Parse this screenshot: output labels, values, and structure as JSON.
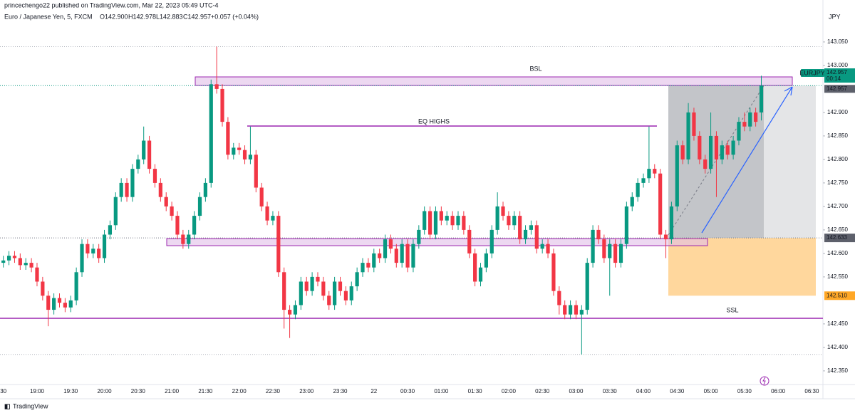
{
  "header": {
    "publisher": "princechengo22 published on TradingView.com, Mar 22, 2023 05:49 UTC-4",
    "symbol": "Euro / Japanese Yen, 5, FXCM",
    "open": "O142.900",
    "high": "H142.978",
    "low": "L142.883",
    "close": "C142.957",
    "change": "+0.057 (+0.04%)",
    "currency": "JPY"
  },
  "footer": {
    "brand": "TradingView"
  },
  "chart_data": {
    "type": "candlestick",
    "categories": [
      "30",
      null,
      null,
      null,
      null,
      null,
      "19:00",
      null,
      null,
      null,
      null,
      null,
      "19:30",
      null,
      null,
      null,
      null,
      null,
      "20:00",
      null,
      null,
      null,
      null,
      null,
      "20:30",
      null,
      null,
      null,
      null,
      null,
      "21:00",
      null,
      null,
      null,
      null,
      null,
      "21:30",
      null,
      null,
      null,
      null,
      null,
      "22:00",
      null,
      null,
      null,
      null,
      null,
      "22:30",
      null,
      null,
      null,
      null,
      null,
      "23:00",
      null,
      null,
      null,
      null,
      null,
      "23:30",
      null,
      null,
      null,
      null,
      null,
      "22",
      null,
      null,
      null,
      null,
      null,
      "00:30",
      null,
      null,
      null,
      null,
      null,
      "01:00",
      null,
      null,
      null,
      null,
      null,
      "01:30",
      null,
      null,
      null,
      null,
      null,
      "02:00",
      null,
      null,
      null,
      null,
      null,
      "02:30",
      null,
      null,
      null,
      null,
      null,
      "03:00",
      null,
      null,
      null,
      null,
      null,
      "03:30",
      null,
      null,
      null,
      null,
      null,
      "04:00",
      null,
      null,
      null,
      null,
      null,
      "04:30",
      null,
      null,
      null,
      null,
      null,
      "05:00",
      null,
      null,
      null,
      null,
      null,
      "05:30",
      null,
      null,
      null,
      null,
      null,
      "06:00",
      null,
      null,
      null,
      null,
      null,
      "06:30"
    ],
    "open": [
      142.58,
      142.585,
      142.595,
      142.59,
      142.575,
      142.58,
      142.57,
      142.54,
      142.51,
      142.48,
      142.505,
      142.495,
      142.485,
      142.5,
      142.56,
      142.62,
      142.6,
      142.61,
      142.59,
      142.64,
      142.66,
      142.72,
      142.75,
      142.72,
      142.78,
      142.8,
      142.84,
      142.78,
      142.75,
      142.72,
      142.7,
      142.68,
      142.64,
      142.62,
      142.64,
      142.68,
      142.72,
      142.75,
      142.96,
      142.95,
      142.88,
      142.81,
      142.825,
      142.82,
      142.8,
      142.81,
      142.74,
      142.7,
      142.67,
      142.68,
      142.56,
      142.48,
      142.47,
      142.49,
      142.54,
      142.52,
      142.55,
      142.54,
      142.51,
      142.49,
      142.54,
      142.52,
      142.5,
      142.53,
      142.56,
      142.58,
      142.57,
      142.6,
      142.59,
      142.63,
      142.61,
      142.58,
      142.62,
      142.57,
      142.62,
      142.65,
      142.69,
      142.64,
      142.69,
      142.67,
      142.68,
      142.66,
      142.68,
      142.65,
      142.6,
      142.54,
      142.57,
      142.6,
      142.65,
      142.7,
      142.68,
      142.66,
      142.68,
      142.63,
      142.65,
      142.66,
      142.61,
      142.62,
      142.6,
      142.52,
      142.49,
      142.47,
      142.49,
      142.47,
      142.48,
      142.58,
      142.65,
      142.63,
      142.59,
      142.62,
      142.58,
      142.62,
      142.7,
      142.72,
      142.75,
      142.76,
      142.78,
      142.77,
      142.64,
      142.63,
      142.7,
      142.83,
      142.8,
      142.9,
      142.85,
      142.8,
      142.78,
      142.85,
      142.8,
      142.83,
      142.81,
      142.84,
      142.88,
      142.87,
      142.9,
      142.9,
      null,
      null,
      null,
      null,
      null,
      null,
      null,
      null,
      null
    ],
    "high": [
      142.595,
      142.605,
      142.605,
      142.6,
      142.59,
      142.59,
      142.58,
      142.55,
      142.52,
      142.515,
      142.515,
      142.505,
      142.51,
      142.57,
      142.63,
      142.63,
      142.62,
      142.62,
      142.65,
      142.67,
      142.73,
      142.76,
      142.76,
      142.79,
      142.81,
      142.87,
      142.85,
      142.79,
      142.76,
      142.73,
      142.71,
      142.69,
      142.65,
      142.65,
      142.69,
      142.73,
      142.76,
      142.97,
      143.04,
      142.96,
      142.89,
      142.835,
      142.835,
      142.83,
      142.87,
      142.82,
      142.75,
      142.71,
      142.69,
      142.69,
      142.57,
      142.49,
      142.5,
      142.55,
      142.55,
      142.56,
      142.56,
      142.55,
      142.52,
      142.55,
      142.55,
      142.53,
      142.54,
      142.57,
      142.59,
      142.59,
      142.61,
      142.61,
      142.64,
      142.64,
      142.62,
      142.63,
      142.63,
      142.63,
      142.66,
      142.7,
      142.7,
      142.7,
      142.7,
      142.69,
      142.69,
      142.69,
      142.69,
      142.66,
      142.61,
      142.58,
      142.61,
      142.66,
      142.73,
      142.71,
      142.69,
      142.69,
      142.69,
      142.66,
      142.67,
      142.67,
      142.63,
      142.63,
      142.61,
      142.53,
      142.5,
      142.5,
      142.5,
      142.49,
      142.59,
      142.66,
      142.66,
      142.64,
      142.63,
      142.63,
      142.63,
      142.71,
      142.73,
      142.76,
      142.77,
      142.87,
      142.79,
      142.78,
      142.65,
      142.71,
      142.84,
      142.84,
      142.92,
      142.91,
      142.86,
      142.81,
      142.9,
      142.86,
      142.84,
      142.84,
      142.85,
      142.89,
      142.9,
      142.91,
      142.91,
      142.978,
      null,
      null,
      null,
      null,
      null,
      null,
      null,
      null,
      null
    ],
    "low": [
      142.57,
      142.575,
      142.58,
      142.565,
      142.565,
      142.56,
      142.53,
      142.5,
      142.445,
      142.47,
      142.485,
      142.475,
      142.475,
      142.49,
      142.55,
      142.59,
      142.59,
      142.58,
      142.58,
      142.63,
      142.65,
      142.71,
      142.71,
      142.71,
      142.77,
      142.79,
      142.77,
      142.74,
      142.71,
      142.69,
      142.67,
      142.63,
      142.61,
      142.61,
      142.63,
      142.67,
      142.71,
      142.74,
      142.94,
      142.87,
      142.8,
      142.8,
      142.81,
      142.79,
      142.79,
      142.73,
      142.69,
      142.66,
      142.66,
      142.55,
      142.44,
      142.42,
      142.46,
      142.48,
      142.51,
      142.51,
      142.53,
      142.5,
      142.48,
      142.48,
      142.51,
      142.49,
      142.49,
      142.52,
      142.55,
      142.56,
      142.56,
      142.58,
      142.58,
      142.6,
      142.57,
      142.57,
      142.56,
      142.56,
      142.61,
      142.64,
      142.63,
      142.63,
      142.66,
      142.66,
      142.65,
      142.65,
      142.64,
      142.59,
      142.53,
      142.53,
      142.56,
      142.59,
      142.64,
      142.67,
      142.65,
      142.65,
      142.62,
      142.62,
      142.64,
      142.6,
      142.6,
      142.59,
      142.51,
      142.47,
      142.46,
      142.46,
      142.46,
      142.385,
      142.47,
      142.57,
      142.62,
      142.58,
      142.51,
      142.57,
      142.57,
      142.61,
      142.69,
      142.71,
      142.74,
      142.75,
      142.76,
      142.63,
      142.59,
      142.62,
      142.69,
      142.79,
      142.79,
      142.84,
      142.79,
      142.77,
      142.77,
      142.72,
      142.79,
      142.8,
      142.8,
      142.83,
      142.86,
      142.86,
      142.87,
      142.883,
      null,
      null,
      null,
      null,
      null,
      null,
      null,
      null,
      null
    ],
    "close": [
      142.585,
      142.595,
      142.59,
      142.575,
      142.58,
      142.57,
      142.54,
      142.51,
      142.48,
      142.505,
      142.495,
      142.485,
      142.5,
      142.56,
      142.62,
      142.6,
      142.61,
      142.59,
      142.64,
      142.66,
      142.72,
      142.75,
      142.72,
      142.78,
      142.8,
      142.84,
      142.78,
      142.75,
      142.72,
      142.7,
      142.68,
      142.64,
      142.62,
      142.64,
      142.68,
      142.72,
      142.75,
      142.96,
      142.95,
      142.88,
      142.81,
      142.825,
      142.82,
      142.8,
      142.81,
      142.74,
      142.7,
      142.67,
      142.68,
      142.56,
      142.48,
      142.47,
      142.49,
      142.54,
      142.52,
      142.55,
      142.54,
      142.51,
      142.49,
      142.54,
      142.52,
      142.5,
      142.53,
      142.56,
      142.58,
      142.57,
      142.6,
      142.59,
      142.63,
      142.61,
      142.58,
      142.62,
      142.57,
      142.62,
      142.65,
      142.69,
      142.64,
      142.69,
      142.67,
      142.68,
      142.66,
      142.68,
      142.65,
      142.6,
      142.54,
      142.57,
      142.6,
      142.65,
      142.7,
      142.68,
      142.66,
      142.68,
      142.63,
      142.65,
      142.66,
      142.61,
      142.62,
      142.6,
      142.52,
      142.49,
      142.47,
      142.49,
      142.47,
      142.48,
      142.58,
      142.65,
      142.63,
      142.59,
      142.62,
      142.58,
      142.62,
      142.7,
      142.72,
      142.75,
      142.76,
      142.78,
      142.77,
      142.64,
      142.63,
      142.7,
      142.83,
      142.8,
      142.9,
      142.85,
      142.8,
      142.78,
      142.85,
      142.8,
      142.83,
      142.81,
      142.84,
      142.88,
      142.87,
      142.9,
      142.88,
      142.957,
      null,
      null,
      null,
      null,
      null,
      null,
      null,
      null,
      null
    ],
    "up_color": "#089981",
    "down_color": "#f23645",
    "ylim": [
      142.321,
      143.112
    ],
    "yticks": [
      {
        "value": 142.35,
        "label": "142.350"
      },
      {
        "value": 142.4,
        "label": "142.400"
      },
      {
        "value": 142.45,
        "label": "142.450"
      },
      {
        "value": 142.55,
        "label": "142.550"
      },
      {
        "value": 142.6,
        "label": "142.600"
      },
      {
        "value": 142.65,
        "label": "142.650"
      },
      {
        "value": 142.7,
        "label": "142.700"
      },
      {
        "value": 142.75,
        "label": "142.750"
      },
      {
        "value": 142.8,
        "label": "142.800"
      },
      {
        "value": 142.85,
        "label": "142.850"
      },
      {
        "value": 142.9,
        "label": "142.900"
      },
      {
        "value": 143.0,
        "label": "143.000"
      },
      {
        "value": 143.05,
        "label": "143.050"
      }
    ],
    "grid": false,
    "annotations": {
      "bsl": "BSL",
      "eq_highs": "EQ HIGHS",
      "ssl": "SSL"
    },
    "symbol_tag": "EURJPY",
    "countdown": "00:14",
    "last_price": {
      "value": 142.957,
      "label": "142.957"
    },
    "entry": {
      "value": 142.633,
      "label": "142.633"
    },
    "stop": {
      "value": 142.51,
      "label": "142.510"
    }
  }
}
